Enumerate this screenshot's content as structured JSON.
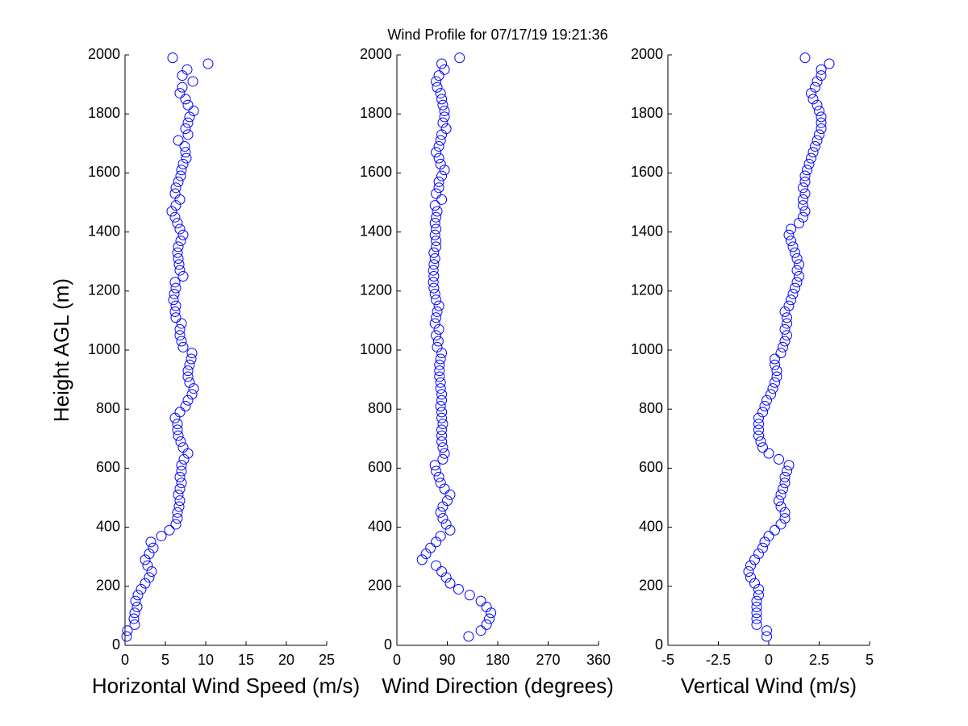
{
  "title": "Wind Profile for  07/17/19 19:21:36",
  "chart_data": [
    {
      "type": "scatter",
      "xlabel": "Horizontal Wind Speed (m/s)",
      "ylabel": "Height AGL (m)",
      "color": "#0000ff",
      "xlim": [
        0,
        25
      ],
      "xticks": [
        0,
        5,
        10,
        15,
        20,
        25
      ],
      "ylim": [
        0,
        2000
      ],
      "yticks": [
        0,
        200,
        400,
        600,
        800,
        1000,
        1200,
        1400,
        1600,
        1800,
        2000
      ],
      "x": [
        0.2,
        0.3,
        1.2,
        1.1,
        1.2,
        1.5,
        1.3,
        1.6,
        2.0,
        2.5,
        3.0,
        3.3,
        2.8,
        2.5,
        3.0,
        3.5,
        3.2,
        4.5,
        5.5,
        6.3,
        6.5,
        6.5,
        6.7,
        6.8,
        6.6,
        6.8,
        7.0,
        6.8,
        7.0,
        7.0,
        7.3,
        7.8,
        7.2,
        6.9,
        6.6,
        6.5,
        6.5,
        6.2,
        6.8,
        7.5,
        7.8,
        8.3,
        8.5,
        8.0,
        7.8,
        7.8,
        8.0,
        8.2,
        8.3,
        7.2,
        7.0,
        6.8,
        6.8,
        7.0,
        6.3,
        6.2,
        6.3,
        6.0,
        6.1,
        6.3,
        6.2,
        7.2,
        6.8,
        6.7,
        6.6,
        6.5,
        6.6,
        6.9,
        7.2,
        6.8,
        6.5,
        6.2,
        5.8,
        6.3,
        6.8,
        6.2,
        6.3,
        6.6,
        6.9,
        7.0,
        7.2,
        7.6,
        7.5,
        7.4,
        6.6,
        7.8,
        7.5,
        7.8,
        8.0,
        8.5,
        7.8,
        7.5,
        6.8,
        7.1,
        8.4,
        7.1,
        7.7,
        10.3,
        5.9
      ],
      "y": [
        30,
        50,
        70,
        90,
        110,
        130,
        150,
        170,
        190,
        210,
        230,
        250,
        270,
        290,
        310,
        330,
        350,
        370,
        390,
        410,
        430,
        450,
        470,
        490,
        510,
        530,
        550,
        570,
        590,
        610,
        630,
        650,
        670,
        690,
        710,
        730,
        750,
        770,
        790,
        810,
        830,
        850,
        870,
        890,
        910,
        930,
        950,
        970,
        990,
        1010,
        1030,
        1050,
        1070,
        1090,
        1110,
        1130,
        1150,
        1170,
        1190,
        1210,
        1230,
        1250,
        1270,
        1290,
        1310,
        1330,
        1350,
        1370,
        1390,
        1410,
        1430,
        1450,
        1470,
        1490,
        1510,
        1530,
        1550,
        1570,
        1590,
        1610,
        1630,
        1650,
        1670,
        1690,
        1710,
        1730,
        1750,
        1770,
        1790,
        1810,
        1830,
        1850,
        1870,
        1890,
        1910,
        1930,
        1950,
        1970,
        1990
      ]
    },
    {
      "type": "scatter",
      "xlabel": "Wind Direction (degrees)",
      "color": "#0000ff",
      "xlim": [
        0,
        360
      ],
      "xticks": [
        0,
        90,
        180,
        270,
        360
      ],
      "ylim": [
        0,
        2000
      ],
      "yticks": [
        0,
        200,
        400,
        600,
        800,
        1000,
        1200,
        1400,
        1600,
        1800,
        2000
      ],
      "x": [
        128,
        150,
        160,
        165,
        168,
        160,
        150,
        130,
        110,
        95,
        88,
        80,
        70,
        45,
        52,
        60,
        70,
        78,
        95,
        88,
        82,
        78,
        82,
        90,
        95,
        85,
        78,
        75,
        70,
        68,
        82,
        85,
        82,
        80,
        80,
        80,
        82,
        80,
        80,
        78,
        80,
        80,
        78,
        78,
        76,
        76,
        76,
        78,
        80,
        72,
        74,
        70,
        75,
        68,
        70,
        72,
        75,
        70,
        68,
        66,
        65,
        66,
        65,
        66,
        68,
        66,
        70,
        70,
        68,
        70,
        68,
        70,
        72,
        68,
        80,
        70,
        75,
        75,
        80,
        85,
        78,
        75,
        70,
        75,
        78,
        80,
        88,
        82,
        85,
        85,
        82,
        80,
        78,
        72,
        70,
        75,
        85,
        80,
        112
      ],
      "y": [
        30,
        50,
        70,
        90,
        110,
        130,
        150,
        170,
        190,
        210,
        230,
        250,
        270,
        290,
        310,
        330,
        350,
        370,
        390,
        410,
        430,
        450,
        470,
        490,
        510,
        530,
        550,
        570,
        590,
        610,
        630,
        650,
        670,
        690,
        710,
        730,
        750,
        770,
        790,
        810,
        830,
        850,
        870,
        890,
        910,
        930,
        950,
        970,
        990,
        1010,
        1030,
        1050,
        1070,
        1090,
        1110,
        1130,
        1150,
        1170,
        1190,
        1210,
        1230,
        1250,
        1270,
        1290,
        1310,
        1330,
        1350,
        1370,
        1390,
        1410,
        1430,
        1450,
        1470,
        1490,
        1510,
        1530,
        1550,
        1570,
        1590,
        1610,
        1630,
        1650,
        1670,
        1690,
        1710,
        1730,
        1750,
        1770,
        1790,
        1810,
        1830,
        1850,
        1870,
        1890,
        1910,
        1930,
        1950,
        1970,
        1990
      ]
    },
    {
      "type": "scatter",
      "xlabel": "Vertical Wind (m/s)",
      "color": "#0000ff",
      "xlim": [
        -5,
        5
      ],
      "xticks": [
        -5,
        -2.5,
        0,
        2.5,
        5
      ],
      "ylim": [
        0,
        2000
      ],
      "yticks": [
        0,
        200,
        400,
        600,
        800,
        1000,
        1200,
        1400,
        1600,
        1800,
        2000
      ],
      "x": [
        -0.1,
        -0.1,
        -0.6,
        -0.6,
        -0.6,
        -0.6,
        -0.6,
        -0.5,
        -0.5,
        -0.7,
        -0.9,
        -1.0,
        -0.9,
        -0.7,
        -0.5,
        -0.3,
        -0.2,
        0,
        0.3,
        0.6,
        0.8,
        0.8,
        0.6,
        0.5,
        0.6,
        0.7,
        0.8,
        0.8,
        0.9,
        1.0,
        0.5,
        0.0,
        -0.3,
        -0.4,
        -0.5,
        -0.5,
        -0.5,
        -0.5,
        -0.3,
        -0.2,
        -0.1,
        0.1,
        0.2,
        0.3,
        0.4,
        0.4,
        0.3,
        0.3,
        0.6,
        0.7,
        0.8,
        0.9,
        0.8,
        0.9,
        0.9,
        0.8,
        1.0,
        1.1,
        1.2,
        1.3,
        1.4,
        1.5,
        1.4,
        1.5,
        1.4,
        1.3,
        1.2,
        1.1,
        1.0,
        1.1,
        1.5,
        1.7,
        1.8,
        1.7,
        1.7,
        1.8,
        1.7,
        1.8,
        1.8,
        1.9,
        2.0,
        2.1,
        2.2,
        2.3,
        2.4,
        2.5,
        2.6,
        2.6,
        2.6,
        2.5,
        2.4,
        2.2,
        2.1,
        2.3,
        2.4,
        2.6,
        2.6,
        3.0,
        1.8
      ],
      "y": [
        30,
        50,
        70,
        90,
        110,
        130,
        150,
        170,
        190,
        210,
        230,
        250,
        270,
        290,
        310,
        330,
        350,
        370,
        390,
        410,
        430,
        450,
        470,
        490,
        510,
        530,
        550,
        570,
        590,
        610,
        630,
        650,
        670,
        690,
        710,
        730,
        750,
        770,
        790,
        810,
        830,
        850,
        870,
        890,
        910,
        930,
        950,
        970,
        990,
        1010,
        1030,
        1050,
        1070,
        1090,
        1110,
        1130,
        1150,
        1170,
        1190,
        1210,
        1230,
        1250,
        1270,
        1290,
        1310,
        1330,
        1350,
        1370,
        1390,
        1410,
        1430,
        1450,
        1470,
        1490,
        1510,
        1530,
        1550,
        1570,
        1590,
        1610,
        1630,
        1650,
        1670,
        1690,
        1710,
        1730,
        1750,
        1770,
        1790,
        1810,
        1830,
        1850,
        1870,
        1890,
        1910,
        1930,
        1950,
        1970,
        1990
      ]
    }
  ]
}
